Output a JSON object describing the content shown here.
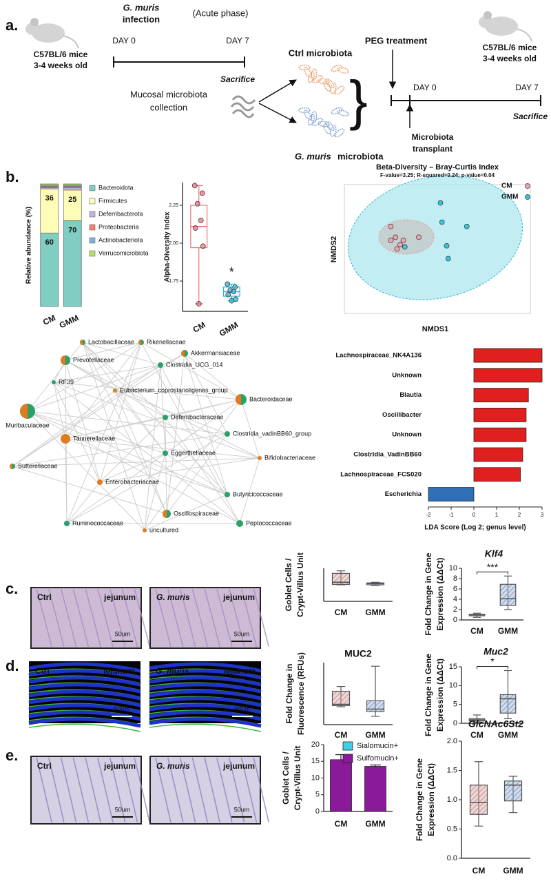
{
  "panels": [
    "a.",
    "b.",
    "c.",
    "d.",
    "e."
  ],
  "diagram": {
    "infection": {
      "italic": "G. muris",
      "rest": "infection"
    },
    "phase": "(Acute phase)",
    "day0": "DAY 0",
    "day7": "DAY 7",
    "mice_left": [
      "C57BL/6 mice",
      "3-4 weeks old"
    ],
    "sacrifice_left": "Sacrifice",
    "collection": [
      "Mucosal microbiota",
      "collection"
    ],
    "ctrl_microbiota": "Ctrl microbiota",
    "gmm_microbiota": {
      "italic": "G. muris",
      "rest": "microbiota"
    },
    "peg": "PEG treatment",
    "day0_right": "DAY 0",
    "day7_right": "DAY 7",
    "sacrifice_right": "Sacrifice",
    "transplant": [
      "Microbiota",
      "transplant"
    ],
    "mice_right": [
      "C57BL/6 mice",
      "3-4 weeks old"
    ]
  },
  "network": {
    "nodes": [
      "Lactobacillaceae",
      "Rikenellaceae",
      "Akkermansiaceae",
      "Prevotellaceae",
      "Clostridia_UCG_014",
      "RF39",
      "Eubacterium_coprostanoligenes_group",
      "Bacteroidaceae",
      "Muribaculaceae",
      "Deferribacteraceae",
      "Clostridia_vadinBB60_group",
      "Tannerellaceae",
      "Eggerthellaceae",
      "Bifidobacteriaceae",
      "Sutterellaceae",
      "Enterobacteriaceae",
      "Butyricicoccaceae",
      "Ruminococcaceae",
      "Oscillospiraceae",
      "Peptococcaceae",
      "uncultured"
    ]
  },
  "images": {
    "c": [
      {
        "condition": "Ctrl",
        "tissue": "jejunum",
        "scale": "50um"
      },
      {
        "condition": "G. muris",
        "tissue": "jejunum",
        "scale": "50um"
      }
    ],
    "d": [
      {
        "condition": "Ctrl",
        "tissue": "jejunum",
        "scale": "50um"
      },
      {
        "condition": "G. muris",
        "tissue": "jejunum",
        "scale": "50um"
      }
    ],
    "e": [
      {
        "condition": "Ctrl",
        "tissue": "jejunum",
        "scale": "50um"
      },
      {
        "condition": "G. muris",
        "tissue": "jejunum",
        "scale": "50um"
      }
    ]
  },
  "chart_data": [
    {
      "type": "stacked",
      "ylabel": "Relative abundance (%)",
      "categories": [
        "CM",
        "GMM"
      ],
      "ylim": [
        0,
        100
      ],
      "series": [
        {
          "name": "Bacteroidota",
          "color": "#80cdc1",
          "values": [
            60,
            70
          ]
        },
        {
          "name": "Firmicutes",
          "color": "#fdfdb8",
          "values": [
            36,
            25
          ]
        },
        {
          "name": "Deferribacterota",
          "color": "#bcb5da",
          "values": [
            1,
            2
          ]
        },
        {
          "name": "Proteobacteria",
          "color": "#f3806f",
          "values": [
            1,
            1
          ]
        },
        {
          "name": "Actinobacteriota",
          "color": "#81b1d4",
          "values": [
            1,
            1
          ]
        },
        {
          "name": "Verrucomicrobiota",
          "color": "#b4de6a",
          "values": [
            1,
            1
          ]
        }
      ]
    },
    {
      "type": "box",
      "ylabel": "Alpha-Diversity Index",
      "categories": [
        "CM",
        "GMM"
      ],
      "colors": [
        "#e8737a",
        "#25b6d2"
      ],
      "ylim": [
        1.55,
        2.4
      ],
      "yticks": [
        1.75,
        {
          "value": 2,
          "label": "2.00"
        },
        2.25
      ],
      "boxes": [
        {
          "min": 1.6,
          "q1": 1.97,
          "median": 2.11,
          "q3": 2.25,
          "max": 2.38
        },
        {
          "min": 1.62,
          "q1": 1.65,
          "median": 1.68,
          "q3": 1.71,
          "max": 1.73
        }
      ],
      "points": [
        [
          2.38,
          2.33,
          2.26,
          2.15,
          2.1,
          1.98,
          1.6
        ],
        [
          1.73,
          1.71,
          1.69,
          1.68,
          1.66,
          1.63,
          1.62
        ]
      ],
      "annotation": "*"
    },
    {
      "type": "scatter",
      "title": "Beta-Diversity – Bray-Curtis Index",
      "subtitle": "F-value=3.25; R-squared=0.24; p-value=0.04",
      "xlabel": "NMDS1",
      "ylabel": "NMDS2",
      "xlim": [
        -0.6,
        0.6
      ],
      "ylim": [
        -0.6,
        0.6
      ],
      "series": [
        {
          "name": "CM",
          "color": "#f0a3b0",
          "x": [
            -0.3,
            -0.27,
            -0.22,
            -0.3,
            -0.24,
            -0.12,
            -0.26
          ],
          "values": [
            0.21,
            0.11,
            0.08,
            0.08,
            0.04,
            0.11,
            0.0
          ]
        },
        {
          "name": "GMM",
          "color": "#33c6de",
          "x": [
            0.02,
            0.03,
            0.06,
            0.19,
            0.07,
            -0.21
          ],
          "values": [
            0.43,
            0.25,
            0.03,
            0.21,
            -0.09,
            0.02
          ]
        }
      ]
    },
    {
      "type": "hbar",
      "xlabel": "LDA Score (Log 2; genus level)",
      "categories": [
        "Lachnospiraceae_NK4A136",
        "Unknown",
        "Blautia",
        "Oscillibacter",
        "Unknown",
        "Clostridia_VadinBB60",
        "Lachnospiraceae_FCS020",
        "Escherichia"
      ],
      "values": [
        3.0,
        3.0,
        2.4,
        2.3,
        2.3,
        2.15,
        2.05,
        -2.0
      ],
      "colors": [
        "#e0201f",
        "#e0201f",
        "#e0201f",
        "#e0201f",
        "#e0201f",
        "#e0201f",
        "#e0201f",
        "#2f6fb5"
      ],
      "xlim": [
        -2,
        3
      ],
      "xticks": [
        -2,
        -1,
        0,
        1,
        2,
        3
      ]
    },
    {
      "type": "box",
      "ylabel": [
        "Goblet Cells /",
        "Crypt-Villus Unit"
      ],
      "categories": [
        "CM",
        "GMM"
      ],
      "colors": [
        "#c9908c",
        "#7f9bc6"
      ],
      "ylim": [
        0,
        26
      ],
      "boxes": [
        {
          "min": 13,
          "q1": 13.3,
          "median": 15,
          "q3": 22,
          "max": 24
        },
        {
          "min": 12.5,
          "q1": 13,
          "median": 14,
          "q3": 14.5,
          "max": 15
        }
      ]
    },
    {
      "type": "box",
      "title": "Klf4",
      "ylabel": [
        "Fold Change in Gene",
        "Expression (ΔΔCt)"
      ],
      "categories": [
        "CM",
        "GMM"
      ],
      "colors": [
        "#c9908c",
        "#7f9bc6"
      ],
      "ylim": [
        0,
        10
      ],
      "yticks": [
        0,
        2,
        4,
        6,
        8,
        10
      ],
      "boxes": [
        {
          "min": 0.5,
          "q1": 0.8,
          "median": 1,
          "q3": 1.1,
          "max": 1.3
        },
        {
          "min": 2,
          "q1": 2.8,
          "median": 4.1,
          "q3": 6.9,
          "max": 8.5
        }
      ],
      "annotation": "***"
    },
    {
      "type": "box",
      "title": "MUC2",
      "ylabel": [
        "Fold Change in",
        "Fluorescence (RFUs)"
      ],
      "categories": [
        "CM",
        "GMM"
      ],
      "colors": [
        "#c9908c",
        "#7f9bc6"
      ],
      "ylim": [
        0,
        2.6
      ],
      "boxes": [
        {
          "min": 0.75,
          "q1": 0.8,
          "median": 0.85,
          "q3": 1.4,
          "max": 1.6
        },
        {
          "min": 0.35,
          "q1": 0.55,
          "median": 0.65,
          "q3": 1.0,
          "max": 2.45
        }
      ]
    },
    {
      "type": "box",
      "title": "Muc2",
      "ylabel": [
        "Fold Change in Gene",
        "Expression (ΔΔCt)"
      ],
      "categories": [
        "CM",
        "GMM"
      ],
      "colors": [
        "#c9908c",
        "#7f9bc6"
      ],
      "ylim": [
        0,
        15
      ],
      "yticks": [
        0,
        5,
        10,
        15
      ],
      "boxes": [
        {
          "min": 0.3,
          "q1": 0.6,
          "median": 0.9,
          "q3": 1.2,
          "max": 2.2
        },
        {
          "min": 1.2,
          "q1": 2.7,
          "median": 6.5,
          "q3": 7.6,
          "max": 14
        }
      ],
      "annotation": "*"
    },
    {
      "type": "bar",
      "ylabel": [
        "Goblet Cells /",
        "Crypt-Villus Unit"
      ],
      "categories": [
        "CM",
        "GMM"
      ],
      "ylim": [
        0,
        20
      ],
      "yticks": [
        0,
        5,
        10,
        15,
        20
      ],
      "series": [
        {
          "name": "Sialomucin+",
          "color": "#3fd0e8",
          "values": [
            0,
            0
          ]
        },
        {
          "name": "Sulfomucin+",
          "color": "#8b1a9b",
          "values": [
            15.5,
            13.5
          ],
          "errors": [
            1.5,
            0.4
          ]
        }
      ]
    },
    {
      "type": "box",
      "title": "GlcNAc6St2",
      "ylabel": [
        "Fold Change in Gene",
        "Expression (ΔΔCt)"
      ],
      "categories": [
        "CM",
        "GMM"
      ],
      "colors": [
        "#c9908c",
        "#7f9bc6"
      ],
      "ylim": [
        0,
        2
      ],
      "yticks": [
        {
          "value": 0,
          "label": "0.0"
        },
        0.5,
        {
          "value": 1,
          "label": "1.0"
        },
        1.5,
        {
          "value": 2,
          "label": "2.0"
        }
      ],
      "boxes": [
        {
          "min": 0.55,
          "q1": 0.75,
          "median": 0.95,
          "q3": 1.25,
          "max": 1.65
        },
        {
          "min": 0.78,
          "q1": 0.98,
          "median": 1.25,
          "q3": 1.32,
          "max": 1.4
        }
      ]
    }
  ]
}
